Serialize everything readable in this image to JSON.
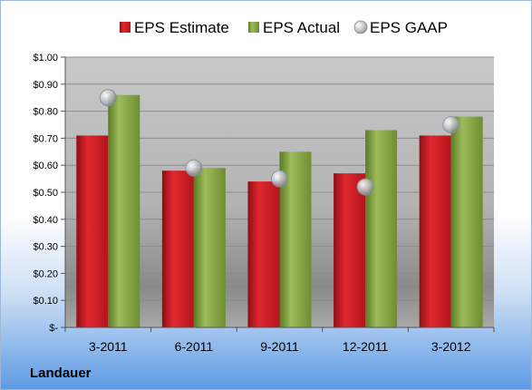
{
  "company": "Landauer",
  "colors": {
    "estimate": "#c0191f",
    "actual": "#7a9a3a",
    "gaap": "#b8bcc2"
  },
  "chart_data": {
    "type": "bar",
    "categories": [
      "3-2011",
      "6-2011",
      "9-2011",
      "12-2011",
      "3-2012"
    ],
    "series": [
      {
        "name": "EPS Estimate",
        "kind": "bar",
        "values": [
          0.71,
          0.58,
          0.54,
          0.57,
          0.71
        ]
      },
      {
        "name": "EPS Actual",
        "kind": "bar",
        "values": [
          0.86,
          0.59,
          0.65,
          0.73,
          0.78
        ]
      },
      {
        "name": "EPS GAAP",
        "kind": "marker",
        "values": [
          0.85,
          0.59,
          0.55,
          0.52,
          0.75
        ]
      }
    ],
    "ylim": [
      0,
      1.0
    ],
    "yticks": [
      {
        "value": 1.0,
        "label": "$1.00"
      },
      {
        "value": 0.9,
        "label": "$0.90"
      },
      {
        "value": 0.8,
        "label": "$0.80"
      },
      {
        "value": 0.7,
        "label": "$0.70"
      },
      {
        "value": 0.6,
        "label": "$0.60"
      },
      {
        "value": 0.5,
        "label": "$0.50"
      },
      {
        "value": 0.4,
        "label": "$0.40"
      },
      {
        "value": 0.3,
        "label": "$0.30"
      },
      {
        "value": 0.2,
        "label": "$0.20"
      },
      {
        "value": 0.1,
        "label": "$0.10"
      },
      {
        "value": 0.0,
        "label": "$-"
      }
    ],
    "legend_position": "top",
    "grid": true
  }
}
